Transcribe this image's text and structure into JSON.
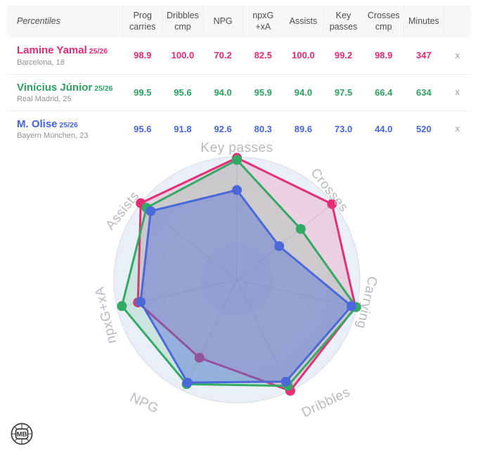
{
  "table": {
    "corner_label": "Percentiles",
    "columns": [
      "Prog\ncarries",
      "Dribbles\ncmp",
      "NPG",
      "npxG +xA",
      "Assists",
      "Key\npasses",
      "Crosses\ncmp",
      "Minutes"
    ],
    "remove_label": "x",
    "rows": [
      {
        "name": "Lamine Yamal",
        "season": "25/26",
        "subtitle": "Barcelona, 18",
        "color": "#e22a77",
        "values": [
          "98.9",
          "100.0",
          "70.2",
          "82.5",
          "100.0",
          "99.2",
          "98.9",
          "347"
        ]
      },
      {
        "name": "Vinícius Júnior",
        "season": "25/26",
        "subtitle": "Real Madrid, 25",
        "color": "#2ca261",
        "values": [
          "99.5",
          "95.6",
          "94.0",
          "95.9",
          "94.0",
          "97.5",
          "66.4",
          "634"
        ]
      },
      {
        "name": "M. Olise",
        "season": "25/26",
        "subtitle": "Bayern München, 23",
        "color": "#4565db",
        "values": [
          "95.6",
          "91.8",
          "92.6",
          "80.3",
          "89.6",
          "73.0",
          "44.0",
          "520"
        ]
      }
    ]
  },
  "chart_data": {
    "type": "radar",
    "title": "",
    "axes": [
      "Key passes",
      "Crosses",
      "Carrying",
      "Dribbles",
      "NPG",
      "npxG+xA",
      "Assists"
    ],
    "range": [
      0,
      100
    ],
    "grid": {
      "outer_circle": true,
      "spokes": true
    },
    "legend_position": "none",
    "series": [
      {
        "name": "Lamine Yamal",
        "color": "#e62e74",
        "fill_opacity": 0.17,
        "values": [
          99.2,
          98.9,
          98.9,
          100.0,
          70.2,
          82.5,
          100.0
        ]
      },
      {
        "name": "Vinícius Júnior",
        "color": "#33a966",
        "fill_opacity": 0.17,
        "values": [
          97.5,
          66.4,
          99.5,
          95.6,
          94.0,
          95.9,
          94.0
        ]
      },
      {
        "name": "M. Olise",
        "color": "#4a68d9",
        "fill_opacity": 0.42,
        "values": [
          73.0,
          44.0,
          95.6,
          91.8,
          92.6,
          80.3,
          89.6
        ]
      }
    ]
  },
  "logo": {
    "text": "MB"
  }
}
